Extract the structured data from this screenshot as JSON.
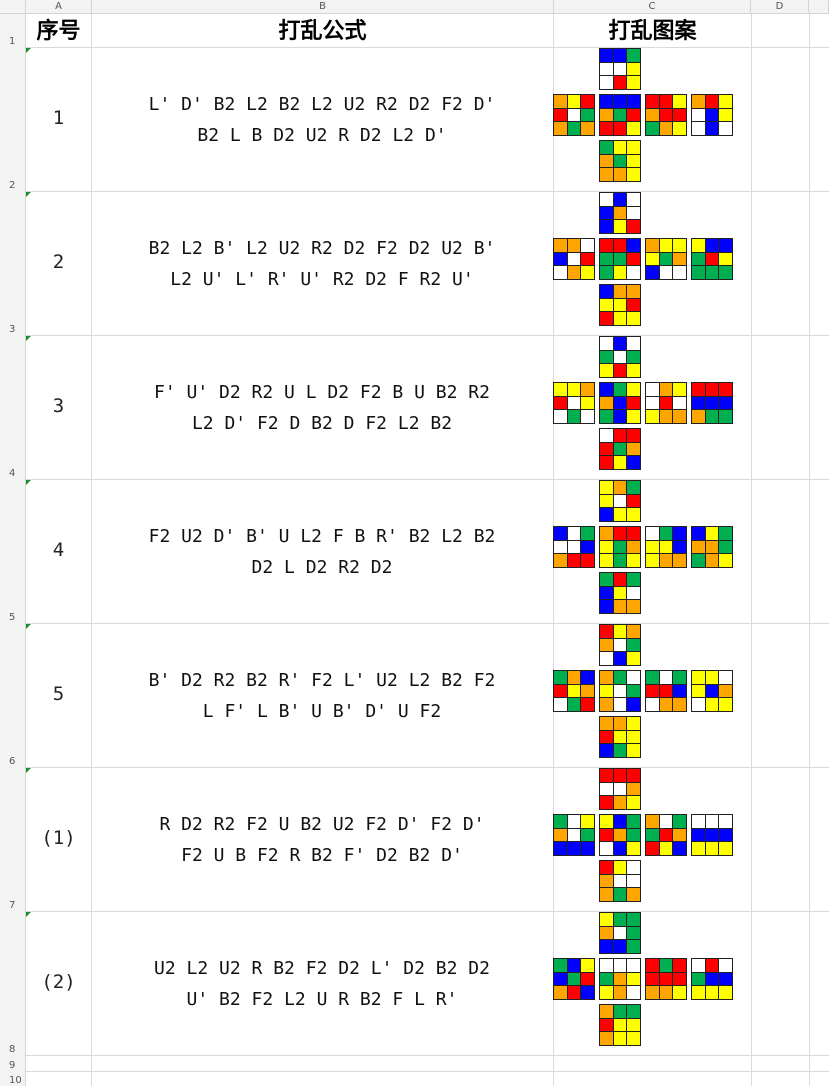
{
  "columns": [
    "A",
    "B",
    "C",
    "D"
  ],
  "row_numbers": [
    "1",
    "2",
    "3",
    "4",
    "5",
    "6",
    "7",
    "8",
    "9",
    "10"
  ],
  "header": {
    "index": "序号",
    "formula": "打乱公式",
    "pattern": "打乱图案"
  },
  "colors": {
    "Y": "#ffff00",
    "W": "#ffffff",
    "R": "#ff0000",
    "G": "#00b050",
    "B": "#0000ff",
    "O": "#ffa500",
    "mark": "#1a8a2a"
  },
  "rows": [
    {
      "index": "1",
      "line1": "L' D' B2 L2 B2 L2 U2 R2 D2 F2 D'",
      "line2": "B2 L B D2 U2 R D2 L2 D'",
      "cube": {
        "U": "BBGWWYWRY",
        "L": "OYRRWGOGO",
        "F": "BBBOGRRRY",
        "R": "RRYORRGOY",
        "B": "ORYWBYWBW",
        "D": "GYYOGYOOY"
      }
    },
    {
      "index": "2",
      "line1": "B2 L2 B' L2 U2 R2 D2 F2 D2 U2 B'",
      "line2": "L2 U' L' R' U' R2 D2 F R2 U'",
      "cube": {
        "U": "WBWBOWBYR",
        "L": "OOWBWRWOY",
        "F": "RRBGGRGYW",
        "R": "OYYYGOBWW",
        "B": "YBBGRYGGG",
        "D": "BOOYYRRYY"
      }
    },
    {
      "index": "3",
      "line1": "F' U' D2 R2 U L D2 F2 B U B2 R2",
      "line2": "L2 D' F2 D B2 D F2 L2 B2",
      "cube": {
        "U": "WBWGWGYRY",
        "L": "YYORWYWGW",
        "F": "BGYOBRGBY",
        "R": "WOYWRWYOO",
        "B": "RRRBBBOGG",
        "D": "WRRRGORYB"
      }
    },
    {
      "index": "4",
      "line1": "F2 U2 D' B' U L2 F B R' B2 L2 B2",
      "line2": "D2 L D2 R2 D2",
      "cube": {
        "U": "YOGYWRBYY",
        "L": "BWGWWBORR",
        "F": "ORRYGOYGY",
        "R": "WGBYYBYOO",
        "B": "BYGOOGGOY",
        "D": "GRGBYWBOO"
      }
    },
    {
      "index": "5",
      "line1": "B' D2 R2 B2 R' F2 L' U2 L2 B2 F2",
      "line2": "L F' L B' U B' D' U F2",
      "cube": {
        "U": "RYOOWGWBY",
        "L": "GOBRYOWGR",
        "F": "OGWYWGOWB",
        "R": "GWGRRBWOO",
        "B": "YYWYBOWYY",
        "D": "OOYRYYBGY"
      }
    },
    {
      "index": "(1)",
      "line1": "R D2 R2 F2 U B2 U2 F2 D' F2 D'",
      "line2": "F2 U B F2 R B2 F' D2 B2 D'",
      "cube": {
        "U": "RRRWWOROY",
        "L": "GWYOWGBBB",
        "F": "YBGROGWBY",
        "R": "OWGGRORYB",
        "B": "WWWBBBYYY",
        "D": "RYWOWWOGO"
      }
    },
    {
      "index": "(2)",
      "line1": "U2 L2 U2 R B2 F2 D2 L' D2 B2 D2",
      "line2": "U' B2 F2 L2 U R B2 F L R'",
      "cube": {
        "U": "YGGOWGBBG",
        "L": "GBYBGRORB",
        "F": "WWWGOYYOW",
        "R": "RGRRRROOY",
        "B": "WRWGBBYYY",
        "D": "OGGRYYOYY"
      }
    }
  ]
}
